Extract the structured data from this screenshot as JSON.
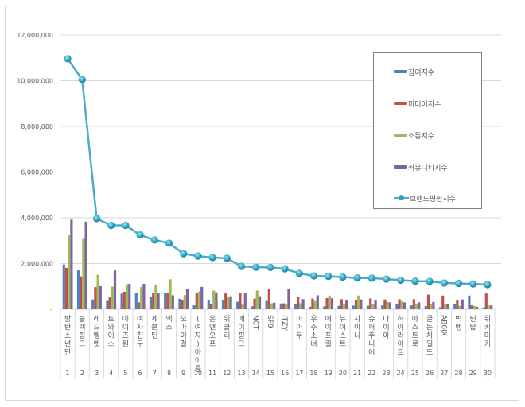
{
  "chart_data": {
    "type": "bar+line",
    "title": "",
    "xlabel": "",
    "ylabel": "",
    "ylim": [
      0,
      12000000
    ],
    "yticks": [
      "-",
      "2,000,000",
      "4,000,000",
      "6,000,000",
      "8,000,000",
      "10,000,000",
      "12,000,000"
    ],
    "grid": true,
    "legend_position": "right",
    "categories": [
      "방탄소년단",
      "블랙핑크",
      "레드벨벳",
      "트와이스",
      "아이즈원",
      "여자친구",
      "세븐틴",
      "엑소",
      "오마이걸",
      "(여자)아이들",
      "온앤오프",
      "위클리",
      "에이핑크",
      "NCT",
      "SF9",
      "ITZY",
      "마마무",
      "우주소녀",
      "에이프릴",
      "뉴이스트",
      "샤이니",
      "슈퍼주니어",
      "다이아",
      "하이라이트",
      "아스트로",
      "골든차일드",
      "AB6IX",
      "빅뱅",
      "틴탑",
      "위키미키"
    ],
    "ranks": [
      "1",
      "2",
      "3",
      "4",
      "5",
      "6",
      "7",
      "8",
      "9",
      "10",
      "11",
      "12",
      "13",
      "14",
      "15",
      "16",
      "17",
      "18",
      "19",
      "20",
      "21",
      "22",
      "23",
      "24",
      "25",
      "26",
      "27",
      "28",
      "29",
      "30"
    ],
    "series": [
      {
        "name": "참여지수",
        "type": "bar",
        "color": "#4f81bd",
        "values": [
          1960000,
          1700000,
          430000,
          360000,
          680000,
          730000,
          560000,
          720000,
          460000,
          170000,
          410000,
          380000,
          330000,
          130000,
          360000,
          250000,
          230000,
          110000,
          130000,
          150000,
          160000,
          160000,
          170000,
          230000,
          170000,
          140000,
          90000,
          230000,
          600000,
          80000
        ]
      },
      {
        "name": "미디어지수",
        "type": "bar",
        "color": "#c0504d",
        "values": [
          1810000,
          1440000,
          970000,
          520000,
          770000,
          300000,
          700000,
          700000,
          400000,
          700000,
          240000,
          700000,
          700000,
          470000,
          900000,
          260000,
          540000,
          470000,
          490000,
          440000,
          390000,
          470000,
          430000,
          440000,
          440000,
          640000,
          600000,
          410000,
          170000,
          690000
        ]
      },
      {
        "name": "소통지수",
        "type": "bar",
        "color": "#9bbb59",
        "values": [
          3260000,
          3080000,
          1510000,
          990000,
          1100000,
          970000,
          1070000,
          1310000,
          620000,
          780000,
          820000,
          560000,
          200000,
          820000,
          260000,
          200000,
          260000,
          360000,
          600000,
          240000,
          600000,
          220000,
          320000,
          360000,
          250000,
          210000,
          230000,
          150000,
          140000,
          160000
        ]
      },
      {
        "name": "커뮤니티지수",
        "type": "bar",
        "color": "#8064a2",
        "values": [
          3920000,
          3830000,
          1010000,
          1700000,
          1110000,
          1110000,
          700000,
          610000,
          870000,
          980000,
          740000,
          570000,
          690000,
          570000,
          290000,
          870000,
          440000,
          610000,
          480000,
          410000,
          430000,
          410000,
          300000,
          300000,
          300000,
          320000,
          210000,
          430000,
          110000,
          170000
        ]
      },
      {
        "name": "브랜드평판지수",
        "type": "line",
        "color": "#4bacc6",
        "values": [
          10960000,
          10050000,
          3970000,
          3670000,
          3670000,
          3250000,
          3030000,
          2890000,
          2430000,
          2330000,
          2260000,
          2230000,
          1880000,
          1840000,
          1830000,
          1770000,
          1570000,
          1460000,
          1440000,
          1410000,
          1370000,
          1360000,
          1320000,
          1270000,
          1230000,
          1220000,
          1150000,
          1130000,
          1110000,
          1080000
        ]
      }
    ]
  }
}
